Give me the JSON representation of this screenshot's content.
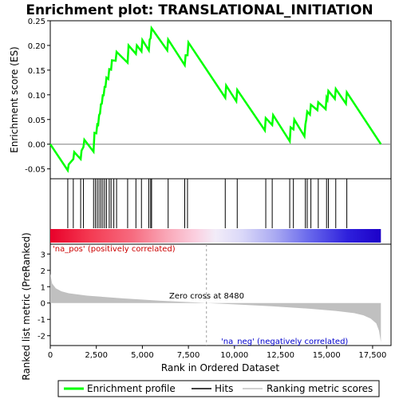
{
  "chart_data": {
    "type": "line",
    "title": "Enrichment plot: TRANSLATIONAL_INITIATION",
    "top_panel": {
      "ylabel": "Enrichment score (ES)",
      "ylim": [
        -0.07,
        0.25
      ],
      "yticks": [
        -0.05,
        0.0,
        0.05,
        0.1,
        0.15,
        0.2,
        0.25
      ],
      "ytick_labels": [
        "-0.05",
        "0.00",
        "0.05",
        "0.10",
        "0.15",
        "0.20",
        "0.25"
      ],
      "series": [
        {
          "name": "Enrichment profile",
          "color": "#00ff00",
          "x": [
            0,
            950,
            1000,
            1250,
            1300,
            1650,
            1700,
            1800,
            1850,
            2350,
            2400,
            2500,
            2550,
            2600,
            2650,
            2700,
            2750,
            2800,
            2850,
            2900,
            2950,
            3000,
            3050,
            3150,
            3200,
            3300,
            3350,
            3550,
            3600,
            4200,
            4250,
            4650,
            4700,
            4950,
            5000,
            5350,
            5400,
            5450,
            5500,
            6350,
            6400,
            7300,
            7350,
            7450,
            7500,
            9500,
            9550,
            10100,
            10150,
            11650,
            11700,
            12050,
            12100,
            13000,
            13050,
            13200,
            13250,
            13800,
            13850,
            13900,
            13950,
            14100,
            14150,
            14500,
            14550,
            14950,
            15000,
            15050,
            15100,
            15450,
            15500,
            16050,
            16100,
            17950
          ],
          "y": [
            0.0,
            -0.053,
            -0.041,
            -0.03,
            -0.016,
            -0.03,
            -0.013,
            -0.006,
            0.009,
            -0.015,
            0.023,
            0.022,
            0.04,
            0.039,
            0.059,
            0.062,
            0.081,
            0.082,
            0.099,
            0.099,
            0.116,
            0.116,
            0.135,
            0.132,
            0.152,
            0.151,
            0.17,
            0.169,
            0.187,
            0.165,
            0.2,
            0.183,
            0.2,
            0.188,
            0.211,
            0.19,
            0.212,
            0.215,
            0.235,
            0.19,
            0.212,
            0.16,
            0.18,
            0.18,
            0.206,
            0.094,
            0.119,
            0.087,
            0.11,
            0.028,
            0.053,
            0.039,
            0.059,
            0.006,
            0.034,
            0.03,
            0.05,
            0.016,
            0.04,
            0.05,
            0.066,
            0.06,
            0.08,
            0.069,
            0.085,
            0.071,
            0.094,
            0.09,
            0.108,
            0.092,
            0.112,
            0.082,
            0.105,
            0.0
          ]
        }
      ]
    },
    "hits_panel": {
      "hits_x": [
        950,
        1250,
        1650,
        1800,
        2350,
        2450,
        2550,
        2650,
        2750,
        2850,
        2950,
        3050,
        3200,
        3300,
        3450,
        3600,
        4200,
        4650,
        4950,
        5350,
        5450,
        5500,
        6400,
        7300,
        7450,
        9500,
        10150,
        11700,
        12050,
        13000,
        13200,
        13850,
        13950,
        14150,
        14550,
        15000,
        15100,
        15500,
        16100
      ]
    },
    "bottom_panel": {
      "ylabel": "Ranked list metric (PreRanked)",
      "xlabel": "Rank in Ordered Dataset",
      "ylim": [
        -2.6,
        3.6
      ],
      "yticks": [
        -2,
        -1,
        0,
        1,
        2,
        3
      ],
      "ytick_labels": [
        "-2",
        "-1",
        "0",
        "1",
        "2",
        "3"
      ],
      "xlim": [
        0,
        18500
      ],
      "xticks": [
        0,
        2500,
        5000,
        7500,
        10000,
        12500,
        15000,
        17500
      ],
      "xtick_labels": [
        "0",
        "2,500",
        "5,000",
        "7,500",
        "10,000",
        "12,500",
        "15,000",
        "17,500"
      ],
      "metric_curve": {
        "x": [
          0,
          100,
          300,
          600,
          1000,
          2000,
          4000,
          6000,
          8000,
          8480,
          10000,
          12000,
          14000,
          15500,
          16500,
          17000,
          17400,
          17700,
          17850,
          17950
        ],
        "y": [
          1.8,
          1.2,
          0.9,
          0.72,
          0.6,
          0.45,
          0.28,
          0.14,
          0.03,
          0.0,
          -0.08,
          -0.2,
          -0.34,
          -0.48,
          -0.62,
          -0.75,
          -0.95,
          -1.25,
          -1.7,
          -2.4
        ]
      },
      "zero_cross": 8480,
      "annotations": {
        "pos": "'na_pos' (positively correlated)",
        "neg": "'na_neg' (negatively correlated)",
        "zero": "Zero cross at 8480"
      }
    },
    "n_genes": 17950,
    "legend": {
      "items": [
        "Enrichment profile",
        "Hits",
        "Ranking metric scores"
      ],
      "placement": "bottom"
    },
    "colors": {
      "profile": "#00ff00",
      "hits": "#000000",
      "metric": "#c0c0c0",
      "pos_text": "#cc0000",
      "neg_text": "#0000cc"
    }
  }
}
